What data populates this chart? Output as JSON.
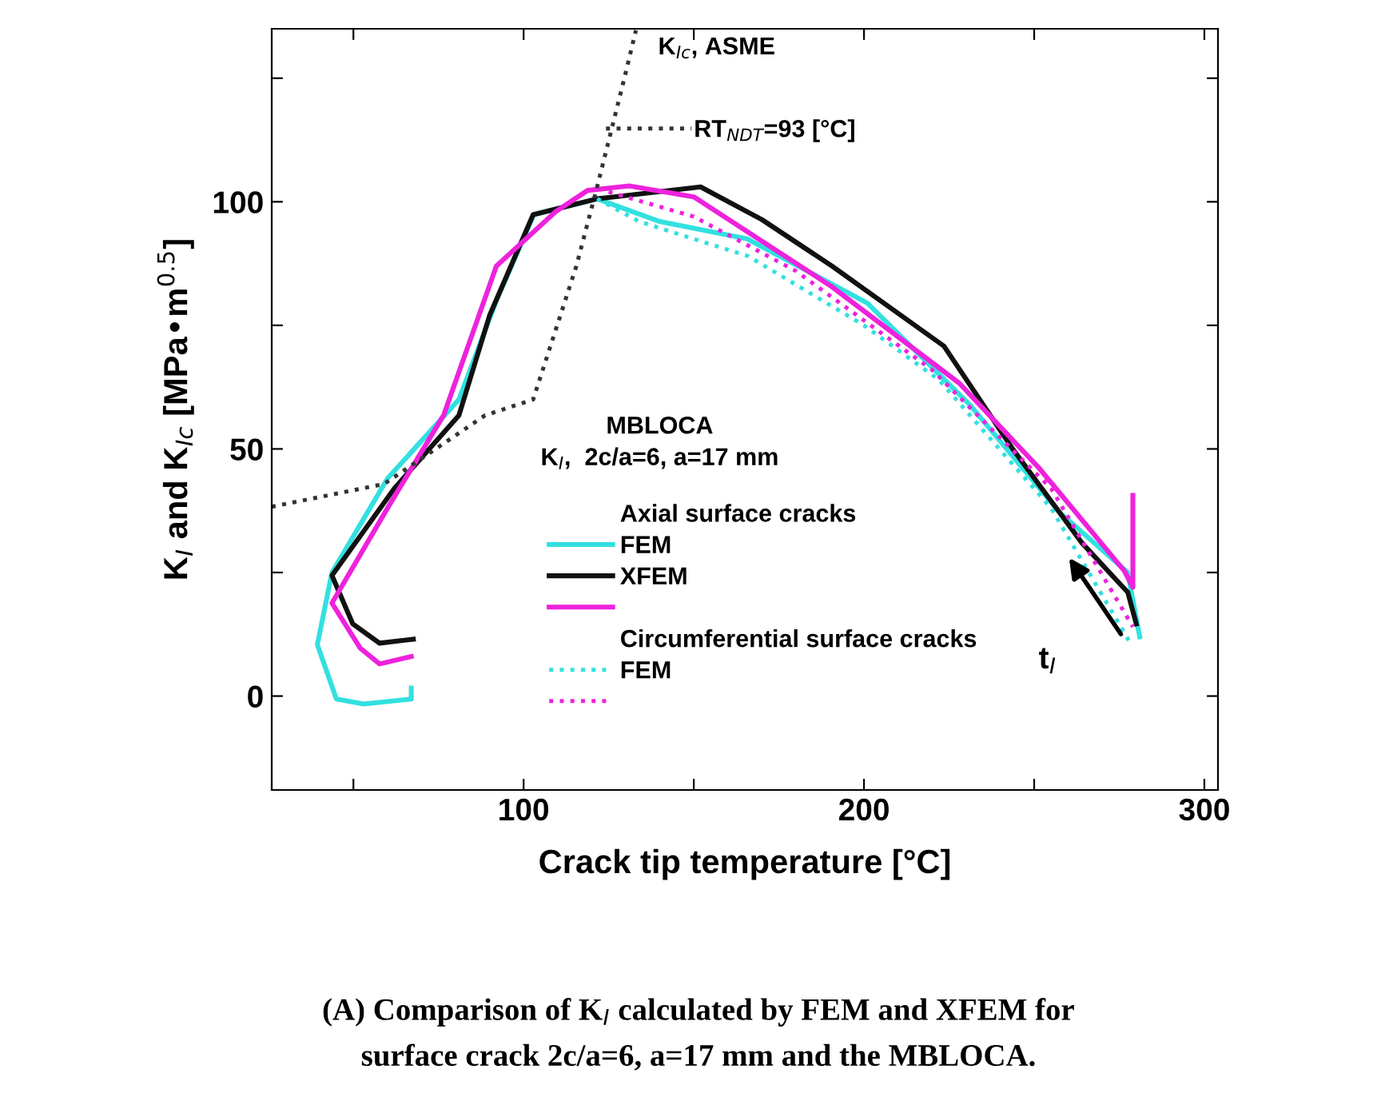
{
  "chart_data": {
    "type": "line",
    "xlabel": "Crack tip temperature [°C]",
    "ylabel": "K$_{I}$ and K$_{Ic}$ [MPa•m$^{0.5}$]",
    "xlim": [
      26,
      304
    ],
    "ylim": [
      -19,
      135
    ],
    "xticks": [
      {
        "value": 50,
        "label": null
      },
      100,
      {
        "value": 150,
        "label": null
      },
      200,
      {
        "value": 250,
        "label": null
      },
      300
    ],
    "yticks": [
      {
        "value": 0,
        "label": "0"
      },
      {
        "value": 25,
        "label": null
      },
      50,
      {
        "value": 75,
        "label": null
      },
      100,
      {
        "value": 125,
        "label": null
      }
    ],
    "grid": false,
    "legend": "bottom",
    "marker": "none",
    "series": [
      {
        "name": "FEM",
        "color": "#33e0e0",
        "line_style": "solid",
        "x": [
          67,
          67,
          53,
          45,
          39.4,
          43.7,
          60,
          81,
          92,
          103,
          121.6,
          140,
          165.7,
          201,
          231,
          257.7,
          277.5,
          281
        ],
        "values": [
          1.6,
          -0.6,
          -1.6,
          -0.6,
          10.4,
          25,
          44,
          60,
          80,
          97.4,
          100.6,
          96,
          92.5,
          79.5,
          59,
          37,
          25,
          12
        ]
      },
      {
        "name": "XFEM",
        "color": "#111111",
        "line_style": "solid",
        "x": [
          67.6,
          57.7,
          49.8,
          43.7,
          62,
          81,
          90,
          102.8,
          121.6,
          152,
          170,
          190.6,
          223.5,
          243.7,
          264,
          277.5,
          280
        ],
        "values": [
          11.5,
          10.7,
          14.6,
          24.4,
          42,
          56.8,
          77,
          97.4,
          100.6,
          103,
          96.4,
          87,
          70.8,
          50,
          31,
          21,
          14.6
        ]
      },
      {
        "color": "#ee22dd",
        "line_style": "solid",
        "x": [
          67,
          57.7,
          52,
          43.7,
          60,
          76.5,
          92,
          109.4,
          118.8,
          131,
          150,
          190.6,
          228,
          251.6,
          276.5,
          279,
          279
        ],
        "values": [
          8,
          6.5,
          9.7,
          18.8,
          38,
          56.8,
          87,
          98,
          102.3,
          103.2,
          101,
          82.8,
          63.3,
          46,
          25.3,
          22,
          40.6
        ]
      },
      {
        "name": "FEM",
        "color": "#33e0e0",
        "line_style": "dotted",
        "x": [
          121.6,
          134,
          166,
          200,
          222,
          255,
          278
        ],
        "values": [
          100.6,
          96,
          89,
          75,
          64,
          38,
          11
        ]
      },
      {
        "color": "#ee22dd",
        "line_style": "dotted",
        "x": [
          125,
          150,
          180,
          220,
          255,
          279
        ],
        "values": [
          102,
          97,
          86,
          66,
          42,
          14
        ]
      },
      {
        "name": "K$_{Ic}$, ASME",
        "color": "#333333",
        "line_style": "dotted",
        "x": [
          26,
          59,
          88.7,
          102.8,
          115.5,
          121.6,
          129.6,
          133
        ],
        "values": [
          38.3,
          42.9,
          56.8,
          60,
          87,
          103,
          125,
          134.7
        ]
      }
    ],
    "legend_title": "MBLOCA\nK$_{I}$,  2c/a=6, a=17 mm",
    "annotations": [
      "Axial surface cracks",
      "Circumferential surface cracks",
      "RT$_{NDT}$=93 [°C]",
      "t$_{I}$",
      "(A) Comparison of K$_{I}$ calculated by FEM and XFEM for\nsurface crack 2c/a=6, a=17 mm and the MBLOCA."
    ]
  }
}
